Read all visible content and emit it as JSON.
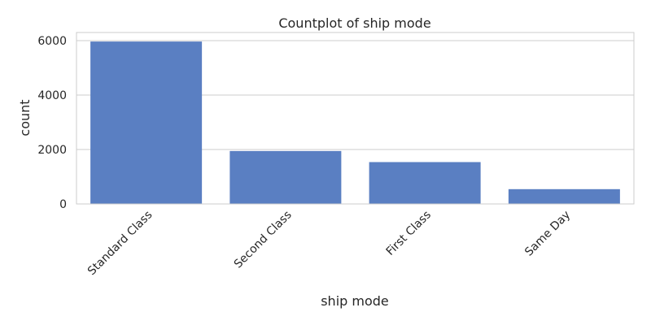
{
  "chart_data": {
    "type": "bar",
    "title": "Countplot of ship mode",
    "xlabel": "ship mode",
    "ylabel": "count",
    "categories": [
      "Standard Class",
      "Second Class",
      "First Class",
      "Same Day"
    ],
    "values": [
      5968,
      1945,
      1538,
      543
    ],
    "ylim": [
      0,
      6300
    ],
    "yticks": [
      0,
      2000,
      4000,
      6000
    ],
    "ytick_labels": [
      "0",
      "2000",
      "4000",
      "6000"
    ],
    "grid": "y",
    "bar_color": "#5a7fc2"
  }
}
